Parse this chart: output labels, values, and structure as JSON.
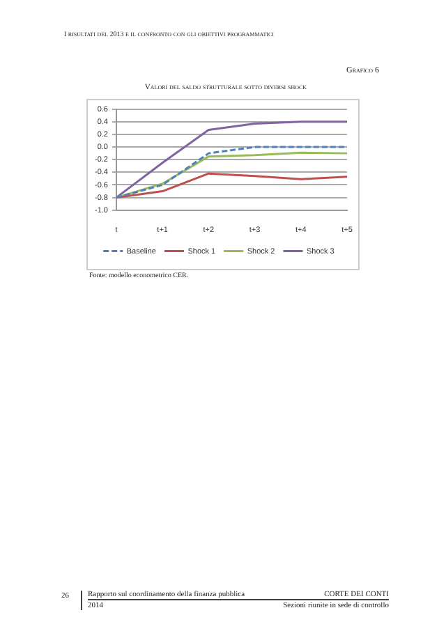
{
  "chart_data": {
    "type": "line",
    "title": "Valori del saldo strutturale sotto diversi shock",
    "subtitle": "Grafico 6",
    "categories": [
      "t",
      "t+1",
      "t+2",
      "t+3",
      "t+4",
      "t+5"
    ],
    "series": [
      {
        "name": "Baseline",
        "color": "#4f81bd",
        "line_style": "dashed",
        "values": [
          -0.8,
          -0.6,
          -0.1,
          0.0,
          0.0,
          0.0
        ]
      },
      {
        "name": "Shock 1",
        "color": "#c0504d",
        "values": [
          -0.8,
          -0.7,
          -0.42,
          -0.46,
          -0.51,
          -0.47
        ]
      },
      {
        "name": "Shock 2",
        "color": "#9bbb59",
        "values": [
          -0.8,
          -0.58,
          -0.15,
          -0.13,
          -0.09,
          -0.1
        ]
      },
      {
        "name": "Shock 3",
        "color": "#8064a2",
        "values": [
          -0.8,
          -0.25,
          0.27,
          0.37,
          0.4,
          0.4
        ]
      }
    ],
    "ylim": [
      -1.0,
      0.6
    ],
    "yticks": [
      {
        "value": -1.0,
        "label": "-1.0"
      },
      {
        "value": -0.8,
        "label": "-0.8"
      },
      {
        "value": -0.6,
        "label": "-0.6"
      },
      {
        "value": -0.4,
        "label": "-0.4"
      },
      {
        "value": -0.2,
        "label": "-0.2"
      },
      {
        "value": 0.0,
        "label": "0.0"
      },
      {
        "value": 0.2,
        "label": "0.2"
      },
      {
        "value": 0.4,
        "label": "0.4"
      },
      {
        "value": 0.6,
        "label": "0.6"
      }
    ],
    "grid": "y",
    "legend": "bottom",
    "marker": "none",
    "annotations": [
      "I risultati del 2013 e il confronto con gli obiettivi programmatici",
      "Fonte: modello econometrico CER.",
      "26",
      "Rapporto sul coordinamento della finanza pubblica",
      "2014",
      "CORTE DEI CONTI",
      "Sezioni riunite in sede di controllo"
    ]
  }
}
